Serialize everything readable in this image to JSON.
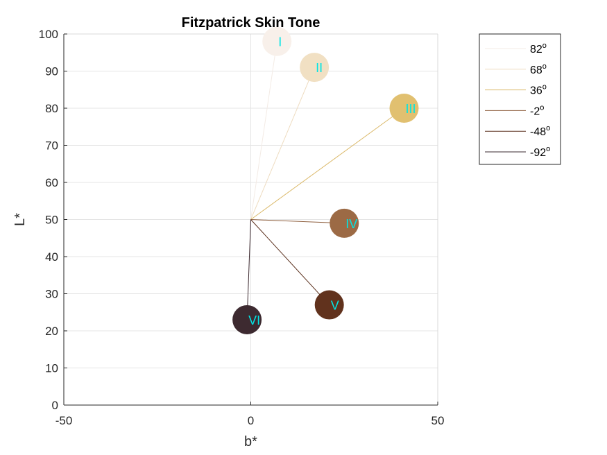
{
  "chart_data": {
    "type": "scatter",
    "title": "Fitzpatrick Skin Tone",
    "xlabel": "b*",
    "ylabel": "L*",
    "xlim": [
      -50,
      50
    ],
    "ylim": [
      0,
      100
    ],
    "xticks": [
      -50,
      0,
      50
    ],
    "yticks": [
      0,
      10,
      20,
      30,
      40,
      50,
      60,
      70,
      80,
      90,
      100
    ],
    "grid": true,
    "origin": {
      "x": 0,
      "y": 50
    },
    "legend_position": "outside-top-right",
    "legend_degree_symbol": "o",
    "series": [
      {
        "name": "82",
        "label": "I",
        "x": 7,
        "y": 98,
        "color": "#f8f0ea",
        "line_color": "#f3ebe5"
      },
      {
        "name": "68",
        "label": "II",
        "x": 17,
        "y": 91,
        "color": "#f1e0c3",
        "line_color": "#eedcc0"
      },
      {
        "name": "36",
        "label": "III",
        "x": 41,
        "y": 80,
        "color": "#e1c070",
        "line_color": "#dbb96a"
      },
      {
        "name": "-2",
        "label": "IV",
        "x": 25,
        "y": 49,
        "color": "#9c6a45",
        "line_color": "#8e5f3e"
      },
      {
        "name": "-48",
        "label": "V",
        "x": 21,
        "y": 27,
        "color": "#61321d",
        "line_color": "#5a2f1c"
      },
      {
        "name": "-92",
        "label": "VI",
        "x": -1,
        "y": 23,
        "color": "#3d2a30",
        "line_color": "#3a272d"
      }
    ]
  }
}
